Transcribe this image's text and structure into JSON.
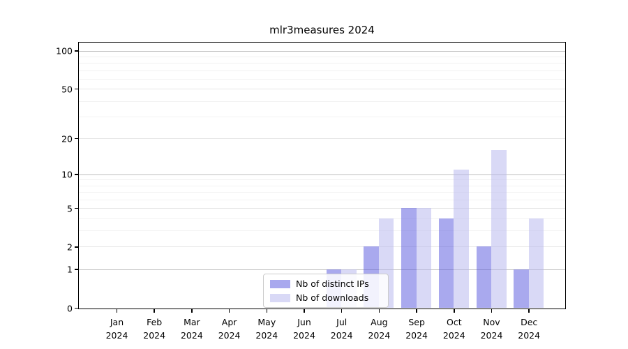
{
  "figure": {
    "title": "mlr3measures 2024"
  },
  "legend": {
    "items": [
      {
        "label": "Nb of distinct IPs",
        "color": "#5353de",
        "alpha": 0.5
      },
      {
        "label": "Nb of downloads",
        "color": "#b3b3ed",
        "alpha": 0.5
      }
    ]
  },
  "chart_data": {
    "type": "bar",
    "title": "mlr3measures 2024",
    "y_scale": "log1p",
    "grid": "horizontal",
    "categories": [
      "Jan",
      "Feb",
      "Mar",
      "Apr",
      "May",
      "Jun",
      "Jul",
      "Aug",
      "Sep",
      "Oct",
      "Nov",
      "Dec"
    ],
    "x_sublabel": "2024",
    "series": [
      {
        "name": "Nb of distinct IPs",
        "color": "#5353de",
        "alpha": 0.5,
        "values": [
          0,
          0,
          0,
          0,
          0,
          0,
          1,
          2,
          5,
          4,
          2,
          1
        ]
      },
      {
        "name": "Nb of downloads",
        "color": "#b3b3ed",
        "alpha": 0.5,
        "values": [
          0,
          0,
          0,
          0,
          0,
          0,
          1,
          4,
          5,
          11,
          16,
          4
        ]
      }
    ],
    "y_ticks": [
      0,
      1,
      2,
      5,
      10,
      20,
      50,
      100
    ],
    "y_minor_ticks": [
      3,
      4,
      6,
      7,
      8,
      9,
      30,
      40,
      60,
      70,
      80,
      90
    ],
    "ylim": [
      0,
      117
    ],
    "xlabel": "",
    "ylabel": "",
    "legend_position": "inside-bottom-center",
    "colors": {
      "bar_ips_rendered": "#a9a9ef",
      "bar_downloads_rendered": "#d9d9f6",
      "grid_decade": "#bdbdbd",
      "grid_major": "#e6e6e6",
      "grid_minor": "#f2f2f2",
      "axis": "#000000",
      "background": "#ffffff"
    }
  }
}
